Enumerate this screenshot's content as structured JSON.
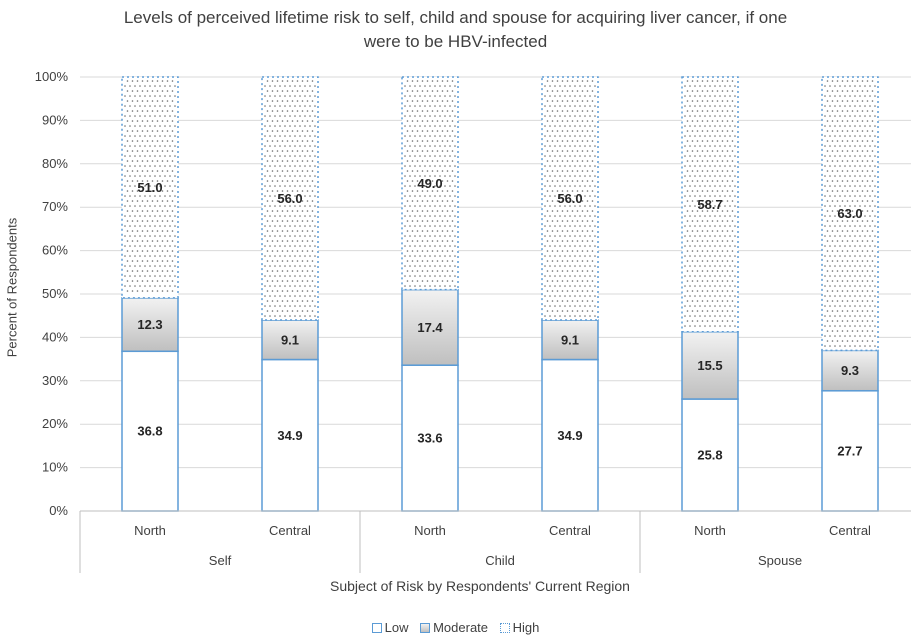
{
  "chart_data": {
    "type": "bar",
    "stacked": true,
    "title_lines": [
      "Levels of perceived lifetime risk to self, child and spouse for acquiring liver cancer, if one",
      "were to be HBV-infected"
    ],
    "xlabel": "Subject of Risk by Respondents' Current Region",
    "ylabel": "Percent of Respondents",
    "ylim": [
      0,
      100
    ],
    "yticks": [
      "0%",
      "10%",
      "20%",
      "30%",
      "40%",
      "50%",
      "60%",
      "70%",
      "80%",
      "90%",
      "100%"
    ],
    "groups": [
      "Self",
      "Child",
      "Spouse"
    ],
    "categories": [
      "North",
      "Central",
      "North",
      "Central",
      "North",
      "Central"
    ],
    "series": [
      {
        "name": "Low",
        "values": [
          36.8,
          34.9,
          33.6,
          34.9,
          25.8,
          27.7
        ]
      },
      {
        "name": "Moderate",
        "values": [
          12.3,
          9.1,
          17.4,
          9.1,
          15.5,
          9.3
        ]
      },
      {
        "name": "High",
        "values": [
          51.0,
          56.0,
          49.0,
          56.0,
          58.7,
          63.0
        ]
      }
    ],
    "value_labels": {
      "Low": [
        "36.8",
        "34.9",
        "33.6",
        "34.9",
        "25.8",
        "27.7"
      ],
      "Moderate": [
        "12.3",
        "9.1",
        "17.4",
        "9.1",
        "15.5",
        "9.3"
      ],
      "High": [
        "51.0",
        "56.0",
        "49.0",
        "56.0",
        "58.7",
        "63.0"
      ]
    },
    "legend_position": "bottom",
    "grid": true,
    "colors": {
      "border": "#5b9bd5",
      "grid": "#d9d9d9",
      "axis": "#bfbfbf",
      "moderate_top": "#f2f2f2",
      "moderate_bottom": "#bfbfbf",
      "text": "#404040"
    }
  }
}
